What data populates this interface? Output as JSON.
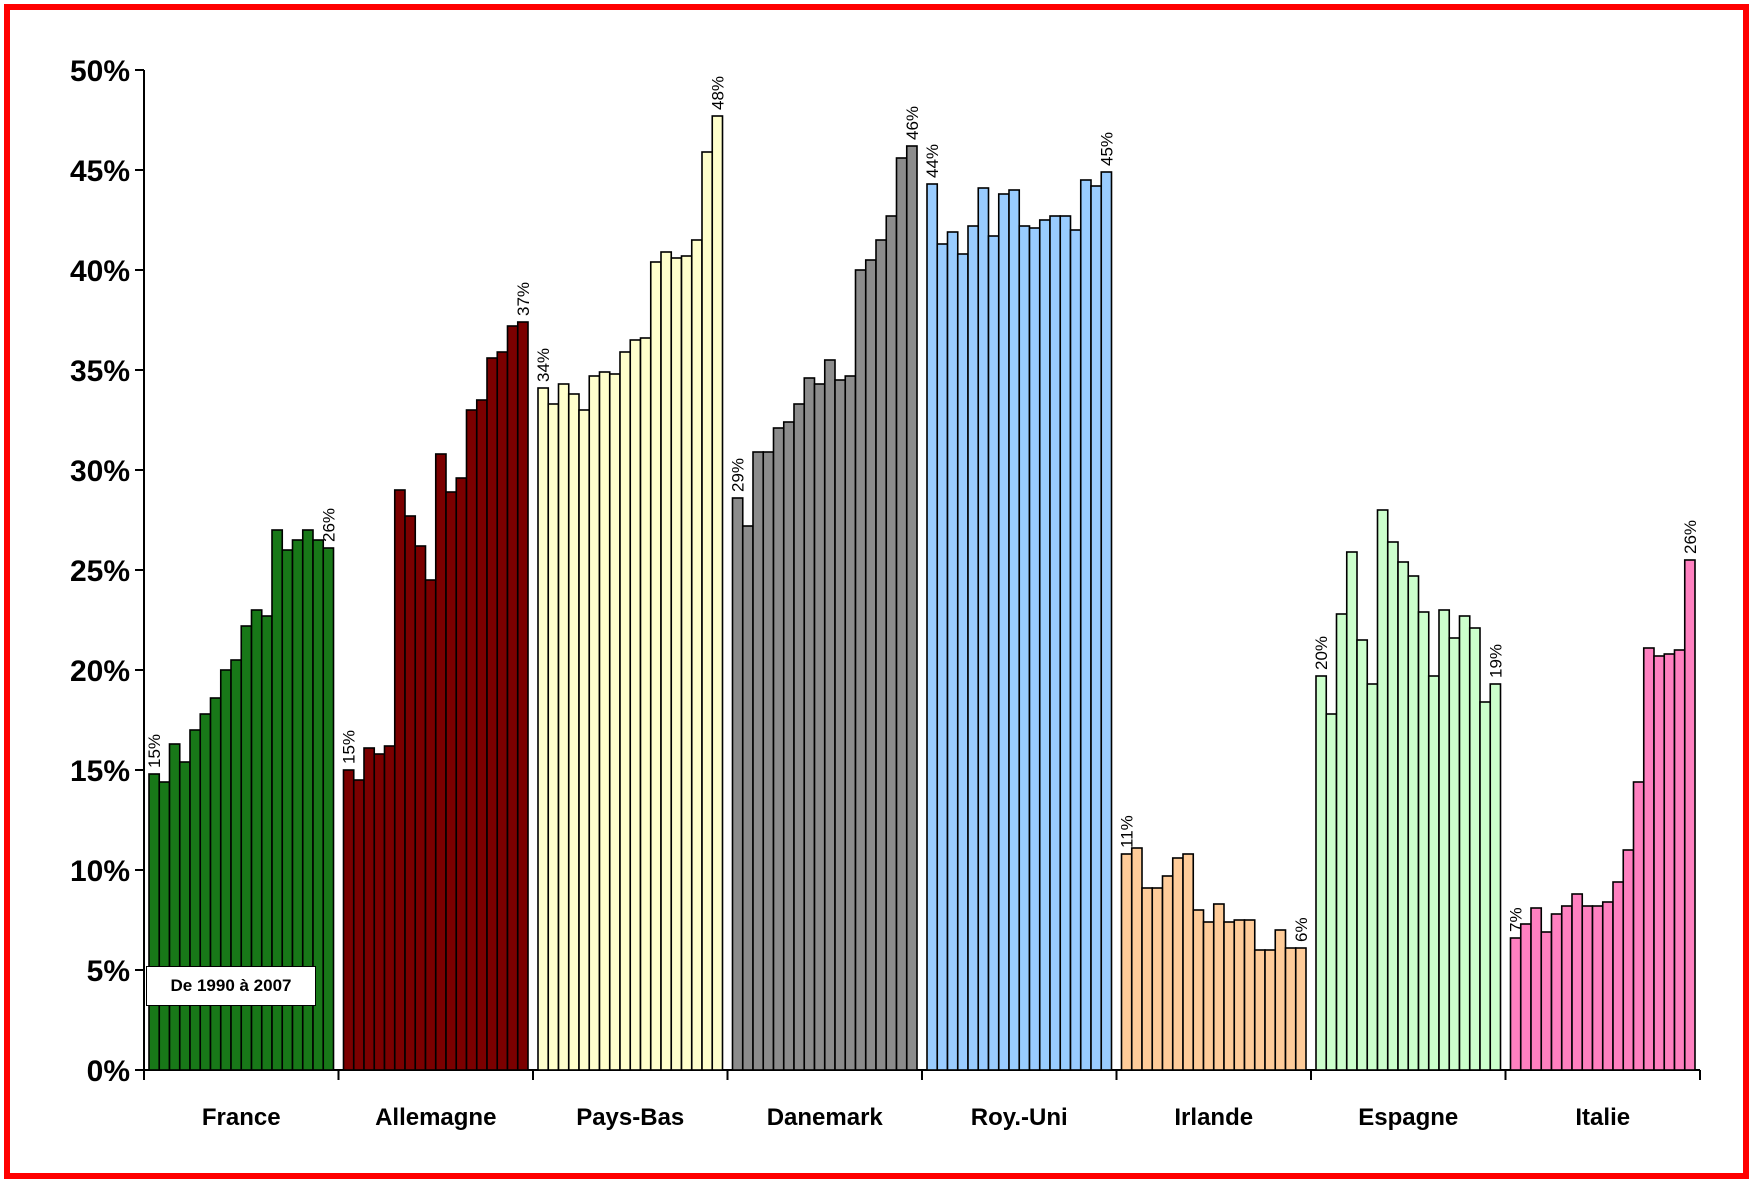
{
  "chart_data": {
    "type": "bar",
    "period_note": "De 1990 à 2007",
    "ylim": [
      0,
      50
    ],
    "yticks": [
      {
        "value": 0,
        "label": "0%"
      },
      {
        "value": 5,
        "label": "5%"
      },
      {
        "value": 10,
        "label": "10%"
      },
      {
        "value": 15,
        "label": "15%"
      },
      {
        "value": 20,
        "label": "20%"
      },
      {
        "value": 25,
        "label": "25%"
      },
      {
        "value": 30,
        "label": "30%"
      },
      {
        "value": 35,
        "label": "35%"
      },
      {
        "value": 40,
        "label": "40%"
      },
      {
        "value": 45,
        "label": "45%"
      },
      {
        "value": 50,
        "label": "50%"
      }
    ],
    "grid": false,
    "groups": [
      {
        "label": "France",
        "color": "#187818",
        "values": [
          14.8,
          14.4,
          16.3,
          15.4,
          17.0,
          17.8,
          18.6,
          20.0,
          20.5,
          22.2,
          23.0,
          22.7,
          27.0,
          26.0,
          26.5,
          27.0,
          26.5,
          26.1
        ],
        "first_label": "15%",
        "last_label": "26%"
      },
      {
        "label": "Allemagne",
        "color": "#7b0000",
        "values": [
          15.0,
          14.5,
          16.1,
          15.8,
          16.2,
          29.0,
          27.7,
          26.2,
          24.5,
          30.8,
          28.9,
          29.6,
          33.0,
          33.5,
          35.6,
          35.9,
          37.2,
          37.4
        ],
        "first_label": "15%",
        "last_label": "37%"
      },
      {
        "label": "Pays-Bas",
        "color": "#ffffcc",
        "values": [
          34.1,
          33.3,
          34.3,
          33.8,
          33.0,
          34.7,
          34.9,
          34.8,
          35.9,
          36.5,
          36.6,
          40.4,
          40.9,
          40.6,
          40.7,
          41.5,
          45.9,
          47.7
        ],
        "first_label": "34%",
        "last_label": "48%"
      },
      {
        "label": "Danemark",
        "color": "#8c8c8c",
        "values": [
          28.6,
          27.2,
          30.9,
          30.9,
          32.1,
          32.4,
          33.3,
          34.6,
          34.3,
          35.5,
          34.5,
          34.7,
          40.0,
          40.5,
          41.5,
          42.7,
          45.6,
          46.2
        ],
        "first_label": "29%",
        "last_label": "46%"
      },
      {
        "label": "Roy.-Uni",
        "color": "#99ccff",
        "values": [
          44.3,
          41.3,
          41.9,
          40.8,
          42.2,
          44.1,
          41.7,
          43.8,
          44.0,
          42.2,
          42.1,
          42.5,
          42.7,
          42.7,
          42.0,
          44.5,
          44.2,
          44.9
        ],
        "first_label": "44%",
        "last_label": "45%"
      },
      {
        "label": "Irlande",
        "color": "#ffcc99",
        "values": [
          10.8,
          11.1,
          9.1,
          9.1,
          9.7,
          10.6,
          10.8,
          8.0,
          7.4,
          8.3,
          7.4,
          7.5,
          7.5,
          6.0,
          6.0,
          7.0,
          6.1,
          6.1
        ],
        "first_label": "11%",
        "last_label": "6%"
      },
      {
        "label": "Espagne",
        "color": "#ccffcc",
        "values": [
          19.7,
          17.8,
          22.8,
          25.9,
          21.5,
          19.3,
          28.0,
          26.4,
          25.4,
          24.7,
          22.9,
          19.7,
          23.0,
          21.6,
          22.7,
          22.1,
          18.4,
          19.3
        ],
        "first_label": "20%",
        "last_label": "19%"
      },
      {
        "label": "Italie",
        "color": "#ff80c0",
        "values": [
          6.6,
          7.3,
          8.1,
          6.9,
          7.8,
          8.2,
          8.8,
          8.2,
          8.2,
          8.4,
          9.4,
          11.0,
          14.4,
          21.1,
          20.7,
          20.8,
          21.0,
          25.5
        ],
        "first_label": "7%",
        "last_label": "26%"
      }
    ]
  }
}
